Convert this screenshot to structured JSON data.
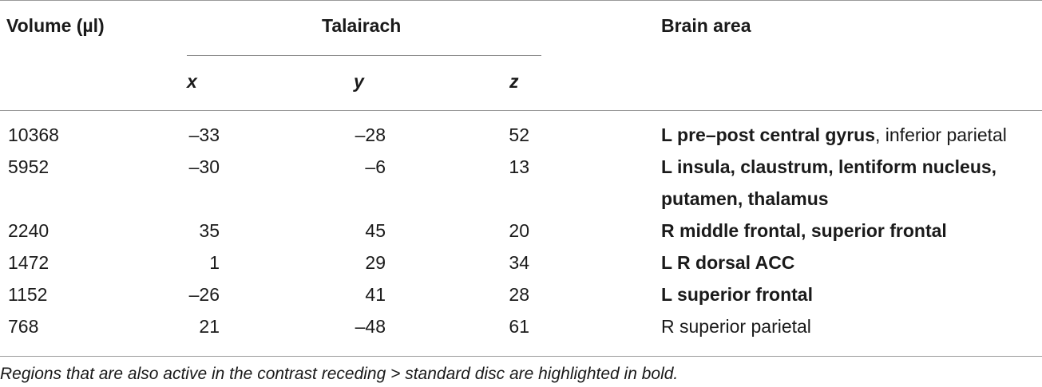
{
  "header": {
    "volume": "Volume (µl)",
    "talairach": "Talairach",
    "brain_area": "Brain area",
    "x": "x",
    "y": "y",
    "z": "z"
  },
  "rows": [
    {
      "volume": "10368",
      "x": "–33",
      "y": "–28",
      "z": "52",
      "area_bold": "L pre–post central gyrus",
      "area_plain": ", inferior parietal",
      "area_bold_2": ""
    },
    {
      "volume": "5952",
      "x": "–30",
      "y": "–6",
      "z": "13",
      "area_bold": "L insula, claustrum, lentiform nucleus,",
      "area_plain": "",
      "area_bold_2": "putamen, thalamus"
    },
    {
      "volume": "2240",
      "x": "35",
      "y": "45",
      "z": "20",
      "area_bold": "R middle frontal, superior frontal",
      "area_plain": "",
      "area_bold_2": ""
    },
    {
      "volume": "1472",
      "x": "1",
      "y": "29",
      "z": "34",
      "area_bold": "L R dorsal ACC",
      "area_plain": "",
      "area_bold_2": ""
    },
    {
      "volume": "1152",
      "x": "–26",
      "y": "41",
      "z": "28",
      "area_bold": "L superior frontal",
      "area_plain": "",
      "area_bold_2": ""
    },
    {
      "volume": "768",
      "x": "21",
      "y": "–48",
      "z": "61",
      "area_bold": "",
      "area_plain": "R superior parietal",
      "area_bold_2": ""
    }
  ],
  "caption": "Regions that are also active in the contrast receding > standard disc are highlighted in bold."
}
